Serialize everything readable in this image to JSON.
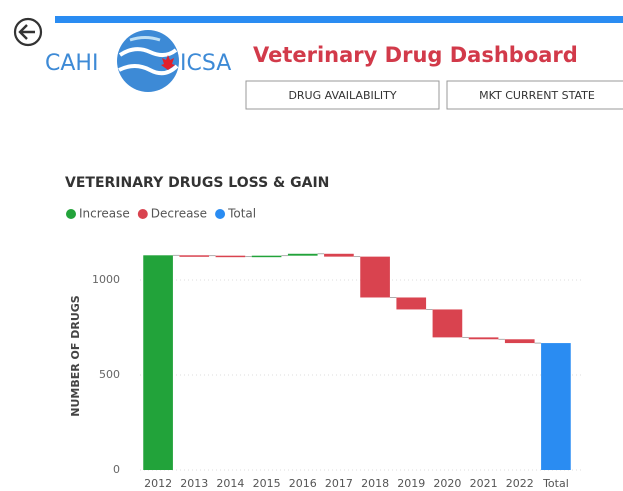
{
  "header": {
    "logo_left": "CAHI",
    "logo_right": "ICSA",
    "title": "Veterinary Drug Dashboard"
  },
  "nav": {
    "buttons": [
      "DRUG AVAILABILITY",
      "MKT CURRENT STATE"
    ]
  },
  "chart_data": {
    "type": "waterfall",
    "title": "VETERINARY DRUGS LOSS & GAIN",
    "y_label": "NUMBER OF DRUGS",
    "legend": [
      {
        "name": "Increase",
        "color": "#22a33a"
      },
      {
        "name": "Decrease",
        "color": "#d9434f"
      },
      {
        "name": "Total",
        "color": "#2a8cf2"
      }
    ],
    "categories": [
      "2012",
      "2013",
      "2014",
      "2015",
      "2016",
      "2017",
      "2018",
      "2019",
      "2020",
      "2021",
      "2022",
      "Total"
    ],
    "values": [
      1130,
      -2,
      -5,
      5,
      10,
      -15,
      -215,
      -63,
      -147,
      -10,
      -20,
      668
    ],
    "ylim": [
      0,
      1200
    ],
    "yticks": [
      0,
      500,
      1000
    ],
    "grid": true
  }
}
